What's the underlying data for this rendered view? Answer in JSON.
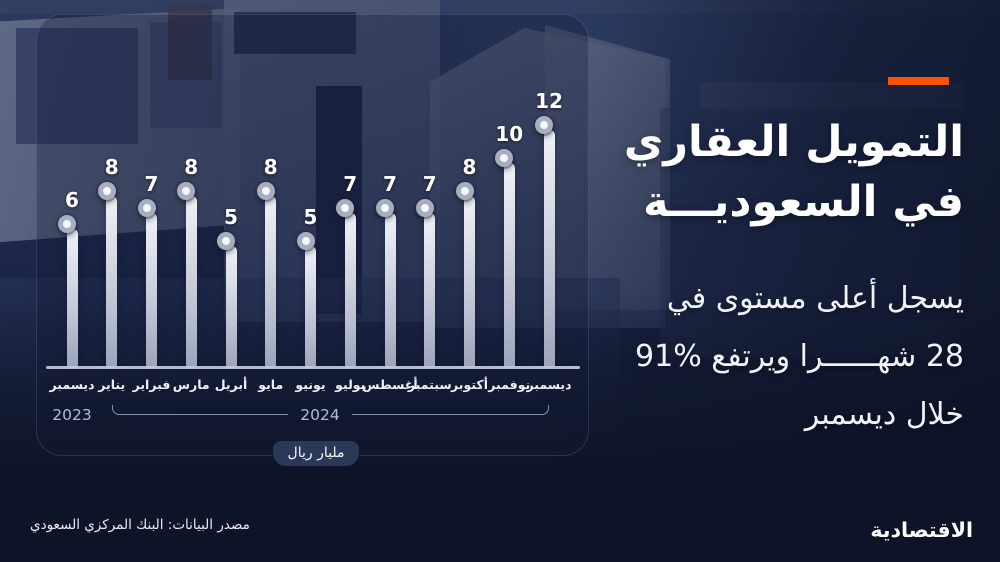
{
  "colors": {
    "accent_orange": "#F95403",
    "navy_background": "#17213F",
    "bar_light": "#E9ECF2",
    "circle_ring": "#949CB2",
    "text_primary": "#FFFFFF",
    "text_muted": "#B3BCD6"
  },
  "title": {
    "line1": "التمويل العقاري",
    "line2": "في السعوديـــة"
  },
  "subtitle": {
    "line1": "يسجل أعلى مستوى في",
    "line2": "28 شهــــــرا ويرتفع %91",
    "line3": "خلال ديسمبر"
  },
  "chart_data": {
    "type": "bar",
    "style": "lollipop",
    "categories": [
      "ديسمبر",
      "يناير",
      "فبراير",
      "مارس",
      "أبريل",
      "مايو",
      "يونيو",
      "يوليو",
      "أغسطس",
      "سبتمبر",
      "أكتوبر",
      "نوفمبر",
      "ديسمبر"
    ],
    "values": [
      6,
      8,
      7,
      8,
      5,
      8,
      5,
      7,
      7,
      7,
      8,
      10,
      12
    ],
    "unit_label": "مليار ريال",
    "year_groups": [
      {
        "label": "2023",
        "from": 0,
        "to": 0
      },
      {
        "label": "2024",
        "from": 1,
        "to": 12
      }
    ],
    "ylim": [
      0,
      12
    ],
    "grid": false,
    "value_labels": "above"
  },
  "source": "مصدر البيانات: البنك المركزي السعودي",
  "logo": "الاقتصادية"
}
